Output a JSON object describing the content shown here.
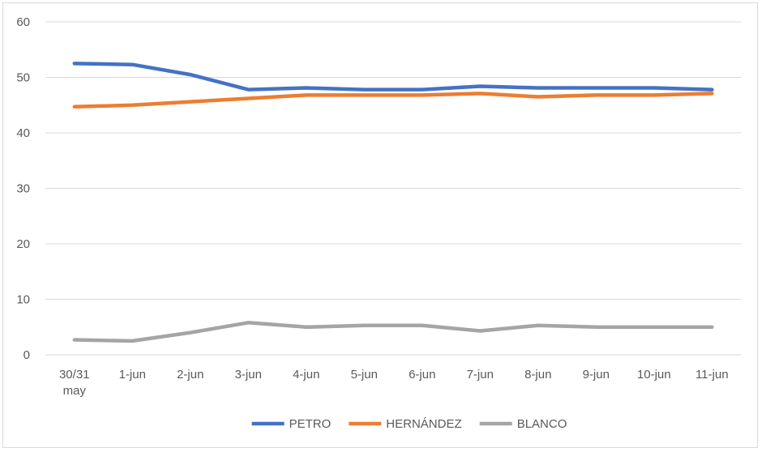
{
  "chart_data": {
    "type": "line",
    "categories": [
      [
        "30/31",
        "may"
      ],
      [
        "1-jun"
      ],
      [
        "2-jun"
      ],
      [
        "3-jun"
      ],
      [
        "4-jun"
      ],
      [
        "5-jun"
      ],
      [
        "6-jun"
      ],
      [
        "7-jun"
      ],
      [
        "8-jun"
      ],
      [
        "9-jun"
      ],
      [
        "10-jun"
      ],
      [
        "11-jun"
      ]
    ],
    "series": [
      {
        "name": "PETRO",
        "color": "#4472C4",
        "values": [
          52.5,
          52.3,
          50.5,
          47.8,
          48.1,
          47.8,
          47.8,
          48.4,
          48.1,
          48.1,
          48.1,
          47.8
        ]
      },
      {
        "name": "HERNÁNDEZ",
        "color": "#ED7D31",
        "values": [
          44.7,
          45.0,
          45.6,
          46.2,
          46.8,
          46.8,
          46.8,
          47.1,
          46.5,
          46.8,
          46.8,
          47.1
        ]
      },
      {
        "name": "BLANCO",
        "color": "#A5A5A5",
        "values": [
          2.7,
          2.5,
          4.0,
          5.8,
          5.0,
          5.3,
          5.3,
          4.3,
          5.3,
          5.0,
          5.0,
          5.0
        ]
      }
    ],
    "ylim": [
      0,
      60
    ],
    "yticks": [
      0,
      10,
      20,
      30,
      40,
      50,
      60
    ],
    "grid": true,
    "legend_position": "bottom",
    "title": "",
    "xlabel": "",
    "ylabel": ""
  }
}
